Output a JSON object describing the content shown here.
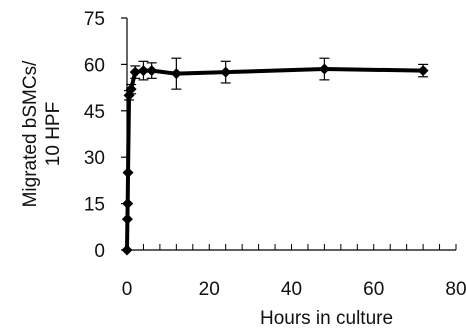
{
  "chart_data": {
    "type": "line",
    "xlabel": "Hours in culture",
    "ylabel_lines": [
      "Migrated bSMCs/",
      "10 HPF"
    ],
    "xlim": [
      0,
      80
    ],
    "ylim": [
      0,
      75
    ],
    "xticks": [
      "0",
      "20",
      "40",
      "60",
      "80"
    ],
    "yticks": [
      "0",
      "15",
      "30",
      "45",
      "60",
      "75"
    ],
    "x_minor_step": 4,
    "grid": false,
    "legend": false,
    "series": [
      {
        "color": "#000000",
        "marker": "diamond",
        "points": [
          {
            "x": 0,
            "y": 0,
            "err": 0
          },
          {
            "x": 0.1,
            "y": 10,
            "err": 0
          },
          {
            "x": 0.17,
            "y": 15,
            "err": 0
          },
          {
            "x": 0.25,
            "y": 25,
            "err": 0
          },
          {
            "x": 0.5,
            "y": 50,
            "err": 1.5
          },
          {
            "x": 1,
            "y": 52,
            "err": 1.5
          },
          {
            "x": 2,
            "y": 57.5,
            "err": 2
          },
          {
            "x": 4,
            "y": 58,
            "err": 3
          },
          {
            "x": 6,
            "y": 58,
            "err": 2.5
          },
          {
            "x": 12,
            "y": 57,
            "err": 5
          },
          {
            "x": 24,
            "y": 57.5,
            "err": 3.5
          },
          {
            "x": 48,
            "y": 58.5,
            "err": 3.5
          },
          {
            "x": 72,
            "y": 58,
            "err": 2
          }
        ]
      }
    ]
  }
}
